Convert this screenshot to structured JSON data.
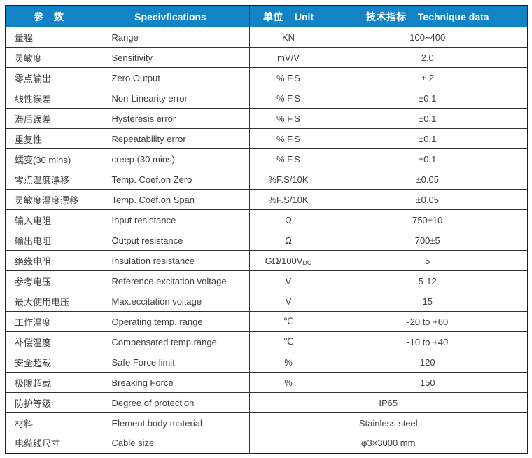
{
  "table": {
    "colors": {
      "header_bg": "#1283C5",
      "header_text": "#FFFFFF",
      "body_text": "#3D3D3D",
      "inner_border": "#333333",
      "outer_border": "#1C1C1C",
      "background": "#FFFFFF"
    },
    "header": {
      "cols": [
        {
          "zh": "参　数",
          "en": ""
        },
        {
          "zh": "",
          "en": "Specivfications"
        },
        {
          "zh": "单位",
          "en": "Unit"
        },
        {
          "zh": "技术指标",
          "en": "Technique data"
        }
      ]
    },
    "rows": [
      {
        "param_zh": "量程",
        "spec_en": "Range",
        "unit": "KN",
        "value": "100~400"
      },
      {
        "param_zh": "灵敏度",
        "spec_en": "Sensitivity",
        "unit": "mV/V",
        "value": "2.0"
      },
      {
        "param_zh": "零点输出",
        "spec_en": "Zero Output",
        "unit": "% F.S",
        "value": "± 2"
      },
      {
        "param_zh": "线性误差",
        "spec_en": "Non-Linearity error",
        "unit": "% F.S",
        "value": "±0.1"
      },
      {
        "param_zh": "滞后误差",
        "spec_en": "Hysteresis error",
        "unit": "% F.S",
        "value": "±0.1"
      },
      {
        "param_zh": "重复性",
        "spec_en": "Repeatability error",
        "unit": "% F.S",
        "value": "±0.1"
      },
      {
        "param_zh": "蠕变(30 mins)",
        "spec_en": "creep (30 mins)",
        "unit": "% F.S",
        "value": "±0.1"
      },
      {
        "param_zh": "零点温度漂移",
        "spec_en": "Temp. Coef.on Zero",
        "unit": "%F.S/10K",
        "value": "±0.05"
      },
      {
        "param_zh": "灵敏度温度漂移",
        "spec_en": "Temp. Coef.on Span",
        "unit": "%F.S/10K",
        "value": "±0.05"
      },
      {
        "param_zh": "输入电阻",
        "spec_en": "Input resistance",
        "unit": "Ω",
        "value": "750±10"
      },
      {
        "param_zh": "输出电阻",
        "spec_en": "Output resistance",
        "unit": "Ω",
        "value": "700±5"
      },
      {
        "param_zh": "绝缘电阻",
        "spec_en": "Insulation resistance",
        "unit": "GΩ/100V",
        "unit_sub": "DC",
        "value": "5"
      },
      {
        "param_zh": "参考电压",
        "spec_en": "Reference excitation voltage",
        "unit": "V",
        "value": "5-12"
      },
      {
        "param_zh": "最大使用电压",
        "spec_en": "Max.eccitation voltage",
        "unit": "V",
        "value": "15"
      },
      {
        "param_zh": "工作温度",
        "spec_en": "Operating temp. range",
        "unit": "℃",
        "value": "-20 to +60"
      },
      {
        "param_zh": "补偿温度",
        "spec_en": "Compensated temp.range",
        "unit": "℃",
        "value": "-10 to +40"
      },
      {
        "param_zh": "安全超载",
        "spec_en": "Safe Force limit",
        "unit": "%",
        "value": "120"
      },
      {
        "param_zh": "极限超载",
        "spec_en": "Breaking Force",
        "unit": "%",
        "value": "150"
      },
      {
        "param_zh": "防护等级",
        "spec_en": "Degree of protection",
        "merged": true,
        "value": "IP65"
      },
      {
        "param_zh": "材料",
        "spec_en": "Element body material",
        "merged": true,
        "value": "Stainless steel"
      },
      {
        "param_zh": "电缆线尺寸",
        "spec_en": "Cable size",
        "merged": true,
        "value": "φ3×3000 mm"
      }
    ]
  }
}
